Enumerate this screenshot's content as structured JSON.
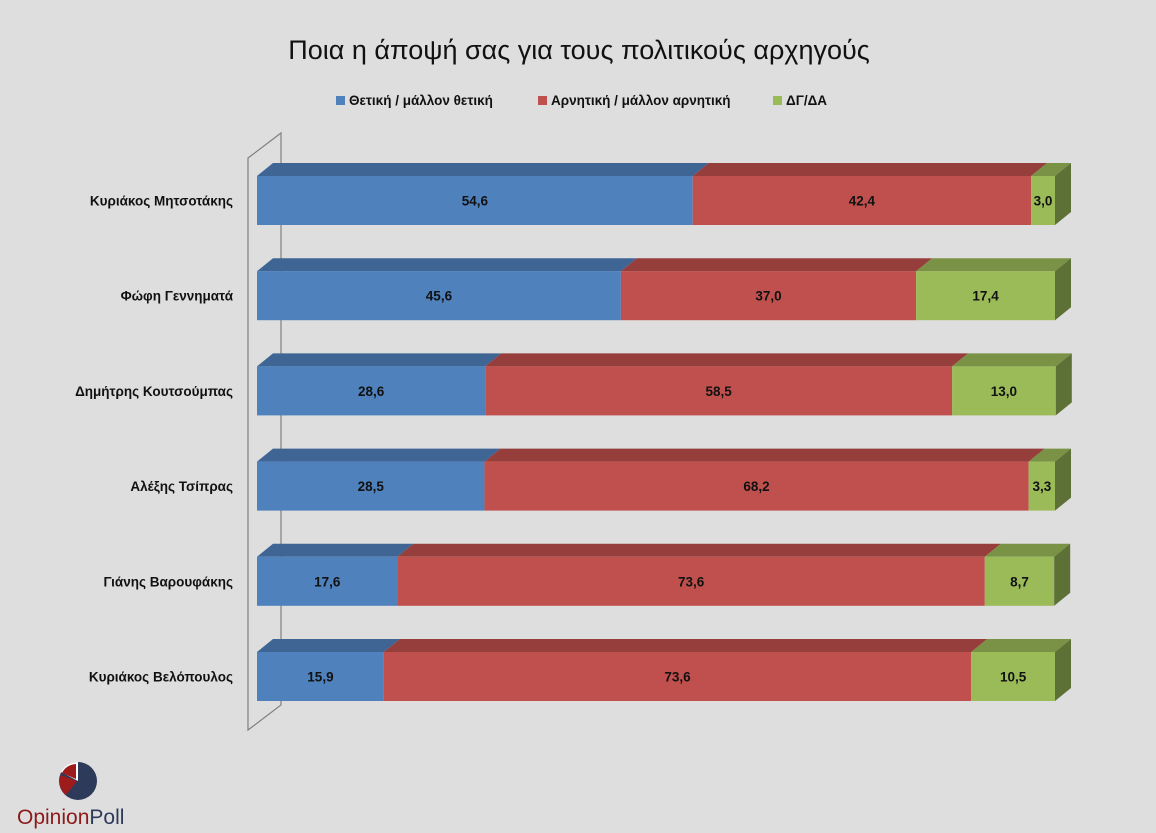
{
  "chart_data": {
    "type": "bar",
    "orientation": "horizontal",
    "stacked": true,
    "percent_stacked": true,
    "three_d": true,
    "title": "Ποια η άποψή σας για τους πολιτικούς αρχηγούς",
    "legend_position": "top",
    "categories": [
      "Κυριάκος Μητσοτάκης",
      "Φώφη Γεννηματά",
      "Δημήτρης Κουτσούμπας",
      "Αλέξης Τσίπρας",
      "Γιάνης Βαρουφάκης",
      "Κυριάκος Βελόπουλος"
    ],
    "series": [
      {
        "name": "Θετική / μάλλον θετική",
        "color": "#4f81bd",
        "values": [
          54.6,
          45.6,
          28.6,
          28.5,
          17.6,
          15.9
        ],
        "labels": [
          "54,6",
          "45,6",
          "28,6",
          "28,5",
          "17,6",
          "15,9"
        ]
      },
      {
        "name": "Αρνητική / μάλλον αρνητική",
        "color": "#c0504d",
        "values": [
          42.4,
          37.0,
          58.5,
          68.2,
          73.6,
          73.6
        ],
        "labels": [
          "42,4",
          "37,0",
          "58,5",
          "68,2",
          "73,6",
          "73,6"
        ]
      },
      {
        "name": "ΔΓ/ΔΑ",
        "color": "#9bbb59",
        "values": [
          3.0,
          17.4,
          13.0,
          3.3,
          8.7,
          10.5
        ],
        "labels": [
          "3,0",
          "17,4",
          "13,0",
          "3,3",
          "8,7",
          "10,5"
        ]
      }
    ],
    "grid": false,
    "value_axis_visible": false
  },
  "logo": {
    "word_1": "Opinion",
    "word_2": "Poll",
    "color_1": "#8b1a1a",
    "color_2": "#2e3a5a"
  }
}
